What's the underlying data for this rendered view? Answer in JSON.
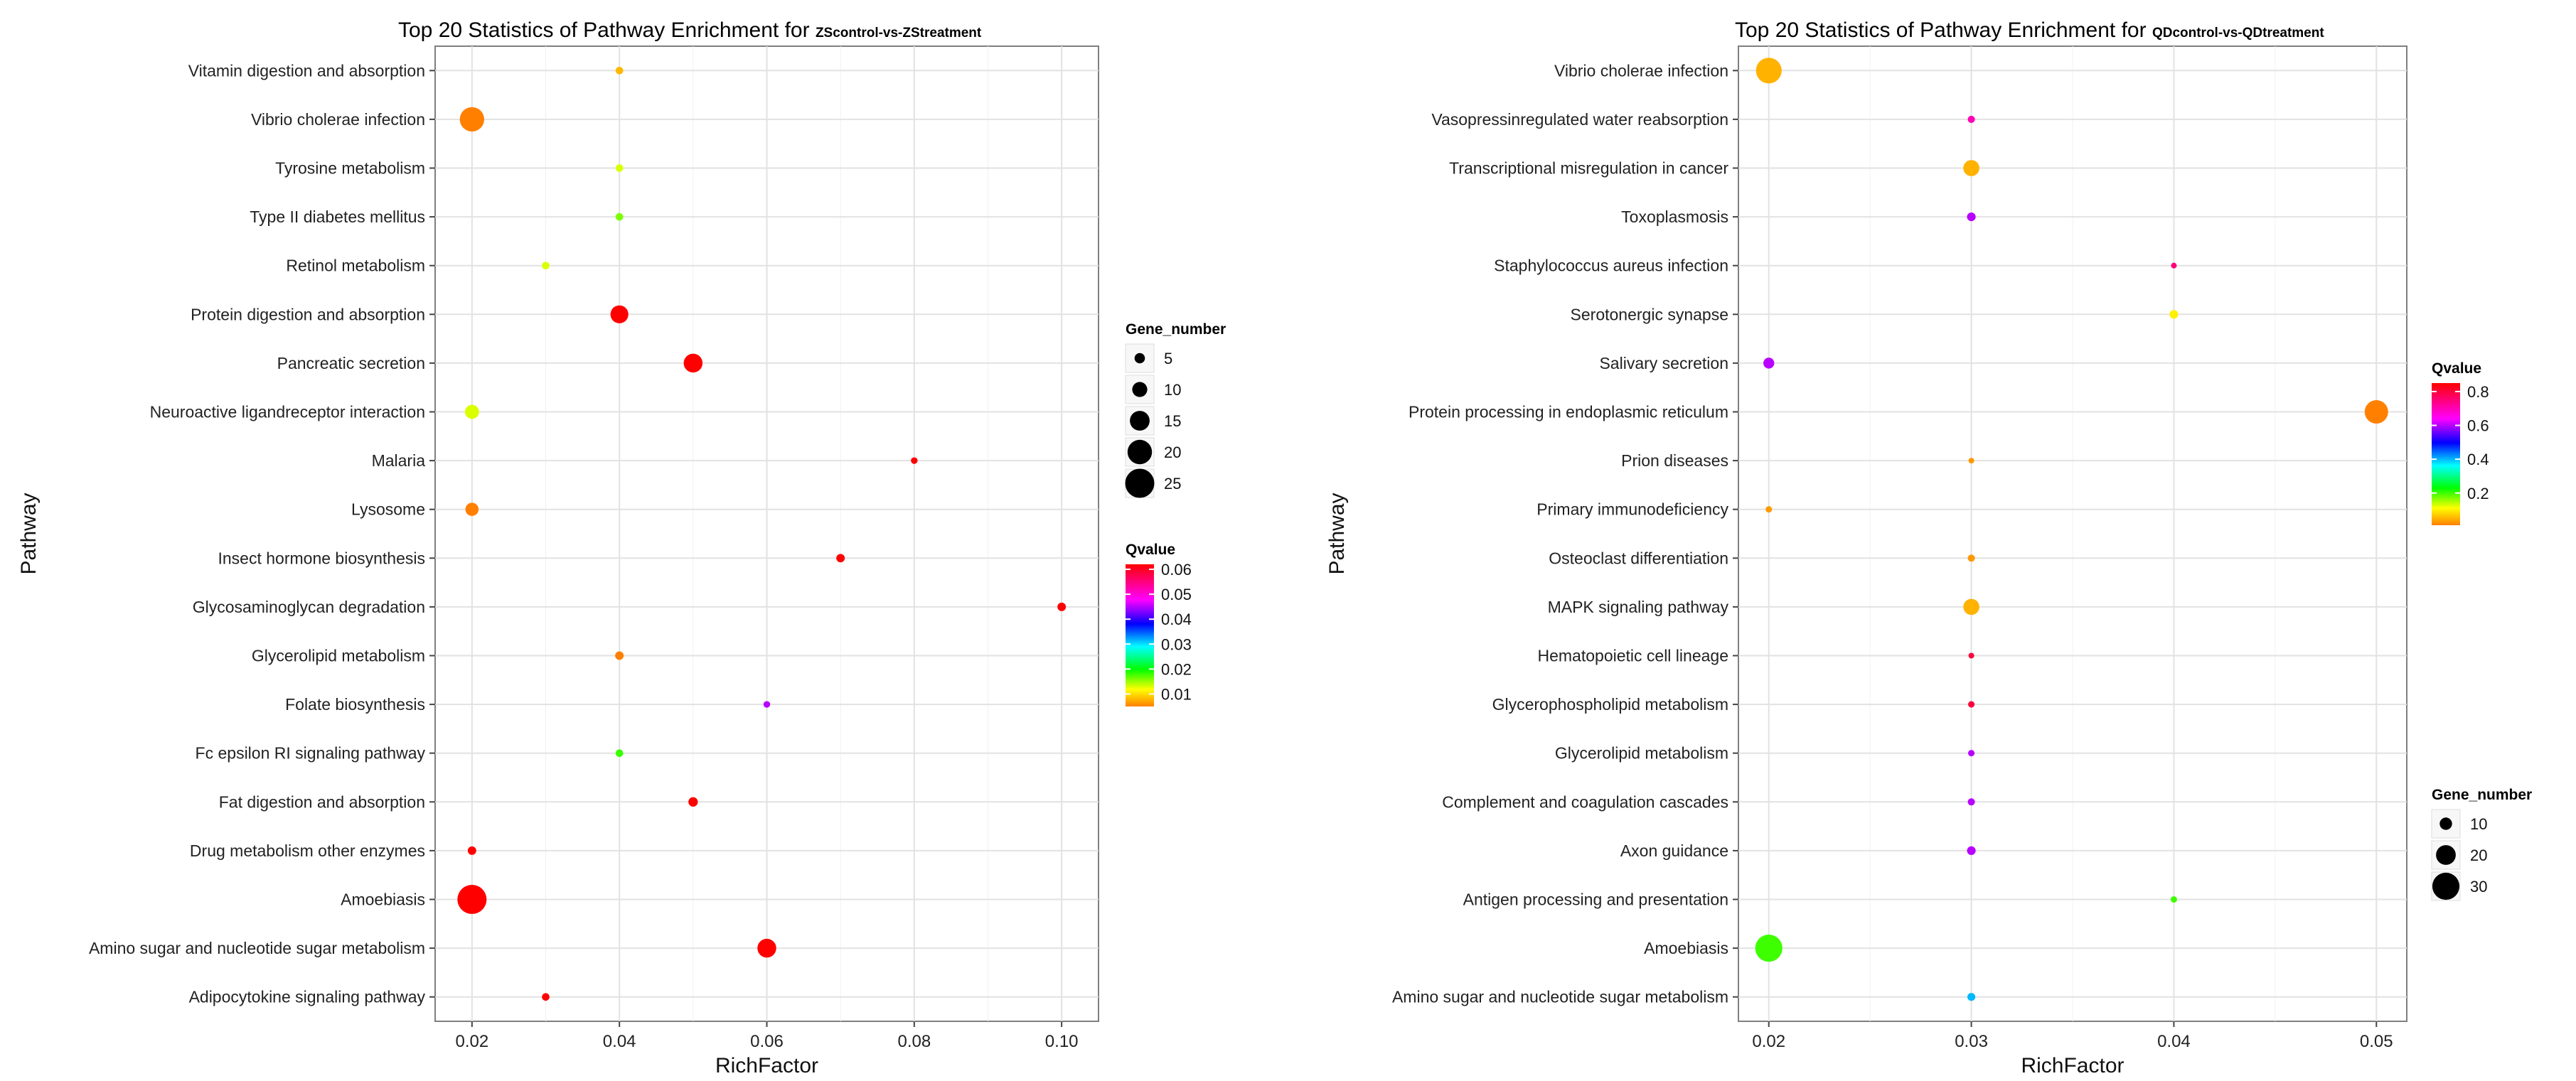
{
  "chart_data": [
    {
      "type": "scatter",
      "title": "Top 20 Statistics of Pathway Enrichment for",
      "subtitle": "ZScontrol-vs-ZStreatment",
      "xlabel": "RichFactor",
      "ylabel": "Pathway",
      "xlim": [
        0.015,
        0.105
      ],
      "xticks": [
        "0.02",
        "0.04",
        "0.06",
        "0.08",
        "0.10"
      ],
      "xtick_values": [
        0.02,
        0.04,
        0.06,
        0.08,
        0.1
      ],
      "categories": [
        "Vitamin digestion and absorption",
        "Vibrio cholerae infection",
        "Tyrosine metabolism",
        "Type II diabetes mellitus",
        "Retinol metabolism",
        "Protein digestion and absorption",
        "Pancreatic secretion",
        "Neuroactive ligandreceptor interaction",
        "Malaria",
        "Lysosome",
        "Insect hormone biosynthesis",
        "Glycosaminoglycan degradation",
        "Glycerolipid metabolism",
        "Folate biosynthesis",
        "Fc epsilon RI signaling pathway",
        "Fat digestion and absorption",
        "Drug metabolism  other enzymes",
        "Amoebiasis",
        "Amino sugar and nucleotide sugar metabolism",
        "Adipocytokine signaling pathway"
      ],
      "points": [
        {
          "pathway": "Vitamin digestion and absorption",
          "rich_factor": 0.04,
          "gene_number": 2,
          "qvalue": 0.008
        },
        {
          "pathway": "Vibrio cholerae infection",
          "rich_factor": 0.02,
          "gene_number": 20,
          "qvalue": 0.005
        },
        {
          "pathway": "Tyrosine metabolism",
          "rich_factor": 0.04,
          "gene_number": 2,
          "qvalue": 0.013
        },
        {
          "pathway": "Type II diabetes mellitus",
          "rich_factor": 0.04,
          "gene_number": 2,
          "qvalue": 0.016
        },
        {
          "pathway": "Retinol metabolism",
          "rich_factor": 0.03,
          "gene_number": 2,
          "qvalue": 0.013
        },
        {
          "pathway": "Protein digestion and absorption",
          "rich_factor": 0.04,
          "gene_number": 13,
          "qvalue": 0.062
        },
        {
          "pathway": "Pancreatic secretion",
          "rich_factor": 0.05,
          "gene_number": 14,
          "qvalue": 0.062
        },
        {
          "pathway": "Neuroactive ligandreceptor interaction",
          "rich_factor": 0.02,
          "gene_number": 9,
          "qvalue": 0.013
        },
        {
          "pathway": "Malaria",
          "rich_factor": 0.08,
          "gene_number": 1,
          "qvalue": 0.062
        },
        {
          "pathway": "Lysosome",
          "rich_factor": 0.02,
          "gene_number": 8,
          "qvalue": 0.005
        },
        {
          "pathway": "Insect hormone biosynthesis",
          "rich_factor": 0.07,
          "gene_number": 3,
          "qvalue": 0.062
        },
        {
          "pathway": "Glycosaminoglycan degradation",
          "rich_factor": 0.1,
          "gene_number": 3,
          "qvalue": 0.062
        },
        {
          "pathway": "Glycerolipid metabolism",
          "rich_factor": 0.04,
          "gene_number": 3,
          "qvalue": 0.005
        },
        {
          "pathway": "Folate biosynthesis",
          "rich_factor": 0.06,
          "gene_number": 1,
          "qvalue": 0.045
        },
        {
          "pathway": "Fc epsilon RI signaling pathway",
          "rich_factor": 0.04,
          "gene_number": 2,
          "qvalue": 0.018
        },
        {
          "pathway": "Fat digestion and absorption",
          "rich_factor": 0.05,
          "gene_number": 4,
          "qvalue": 0.062
        },
        {
          "pathway": "Drug metabolism  other enzymes",
          "rich_factor": 0.02,
          "gene_number": 3,
          "qvalue": 0.062
        },
        {
          "pathway": "Amoebiasis",
          "rich_factor": 0.02,
          "gene_number": 25,
          "qvalue": 0.062
        },
        {
          "pathway": "Amino sugar and nucleotide sugar metabolism",
          "rich_factor": 0.06,
          "gene_number": 14,
          "qvalue": 0.062
        },
        {
          "pathway": "Adipocytokine signaling pathway",
          "rich_factor": 0.03,
          "gene_number": 2,
          "qvalue": 0.062
        }
      ],
      "size_legend": {
        "title": "Gene_number",
        "values": [
          5,
          10,
          15,
          20,
          25
        ],
        "labels": [
          "5",
          "10",
          "15",
          "20",
          "25"
        ]
      },
      "color_legend": {
        "title": "Qvalue",
        "range": [
          0.005,
          0.062
        ],
        "ticks": [
          0.06,
          0.05,
          0.04,
          0.03,
          0.02,
          0.01
        ],
        "labels": [
          "0.06",
          "0.05",
          "0.04",
          "0.03",
          "0.02",
          "0.01"
        ]
      }
    },
    {
      "type": "scatter",
      "title": "Top 20 Statistics of Pathway Enrichment for",
      "subtitle": "QDcontrol-vs-QDtreatment",
      "xlabel": "RichFactor",
      "ylabel": "Pathway",
      "xlim": [
        0.0185,
        0.0515
      ],
      "xticks": [
        "0.02",
        "0.03",
        "0.04",
        "0.05"
      ],
      "xtick_values": [
        0.02,
        0.03,
        0.04,
        0.05
      ],
      "categories": [
        "Vibrio cholerae infection",
        "Vasopressinregulated water reabsorption",
        "Transcriptional misregulation in cancer",
        "Toxoplasmosis",
        "Staphylococcus aureus infection",
        "Serotonergic synapse",
        "Salivary secretion",
        "Protein processing in endoplasmic reticulum",
        "Prion diseases",
        "Primary immunodeficiency",
        "Osteoclast differentiation",
        "MAPK signaling pathway",
        "Hematopoietic cell lineage",
        "Glycerophospholipid metabolism",
        "Glycerolipid metabolism",
        "Complement and coagulation cascades",
        "Axon guidance",
        "Antigen processing and presentation",
        "Amoebiasis",
        "Amino sugar and nucleotide sugar metabolism"
      ],
      "points": [
        {
          "pathway": "Vibrio cholerae infection",
          "rich_factor": 0.02,
          "gene_number": 28,
          "qvalue": 0.05
        },
        {
          "pathway": "Vasopressinregulated water reabsorption",
          "rich_factor": 0.03,
          "gene_number": 3,
          "qvalue": 0.7
        },
        {
          "pathway": "Transcriptional misregulation in cancer",
          "rich_factor": 0.03,
          "gene_number": 15,
          "qvalue": 0.05
        },
        {
          "pathway": "Toxoplasmosis",
          "rich_factor": 0.03,
          "gene_number": 5,
          "qvalue": 0.6
        },
        {
          "pathway": "Staphylococcus aureus infection",
          "rich_factor": 0.04,
          "gene_number": 1,
          "qvalue": 0.75
        },
        {
          "pathway": "Serotonergic synapse",
          "rich_factor": 0.04,
          "gene_number": 5,
          "qvalue": 0.1
        },
        {
          "pathway": "Salivary secretion",
          "rich_factor": 0.02,
          "gene_number": 8,
          "qvalue": 0.6
        },
        {
          "pathway": "Protein processing in endoplasmic reticulum",
          "rich_factor": 0.05,
          "gene_number": 25,
          "qvalue": 0.01
        },
        {
          "pathway": "Prion diseases",
          "rich_factor": 0.03,
          "gene_number": 1,
          "qvalue": 0.03
        },
        {
          "pathway": "Primary immunodeficiency",
          "rich_factor": 0.02,
          "gene_number": 2,
          "qvalue": 0.03
        },
        {
          "pathway": "Osteoclast differentiation",
          "rich_factor": 0.03,
          "gene_number": 3,
          "qvalue": 0.03
        },
        {
          "pathway": "MAPK signaling pathway",
          "rich_factor": 0.03,
          "gene_number": 15,
          "qvalue": 0.05
        },
        {
          "pathway": "Hematopoietic cell lineage",
          "rich_factor": 0.03,
          "gene_number": 1,
          "qvalue": 0.8
        },
        {
          "pathway": "Glycerophospholipid metabolism",
          "rich_factor": 0.03,
          "gene_number": 2,
          "qvalue": 0.8
        },
        {
          "pathway": "Glycerolipid metabolism",
          "rich_factor": 0.03,
          "gene_number": 2,
          "qvalue": 0.6
        },
        {
          "pathway": "Complement and coagulation cascades",
          "rich_factor": 0.03,
          "gene_number": 3,
          "qvalue": 0.6
        },
        {
          "pathway": "Axon guidance",
          "rich_factor": 0.03,
          "gene_number": 5,
          "qvalue": 0.6
        },
        {
          "pathway": "Antigen processing and presentation",
          "rich_factor": 0.04,
          "gene_number": 2,
          "qvalue": 0.2
        },
        {
          "pathway": "Amoebiasis",
          "rich_factor": 0.02,
          "gene_number": 30,
          "qvalue": 0.2
        },
        {
          "pathway": "Amino sugar and nucleotide sugar metabolism",
          "rich_factor": 0.03,
          "gene_number": 4,
          "qvalue": 0.4
        }
      ],
      "size_legend": {
        "title": "Gene_number",
        "values": [
          10,
          20,
          30
        ],
        "labels": [
          "10",
          "20",
          "30"
        ]
      },
      "color_legend": {
        "title": "Qvalue",
        "range": [
          0.01,
          0.85
        ],
        "ticks": [
          0.8,
          0.6,
          0.4,
          0.2
        ],
        "labels": [
          "0.8",
          "0.6",
          "0.4",
          "0.2"
        ]
      }
    }
  ]
}
